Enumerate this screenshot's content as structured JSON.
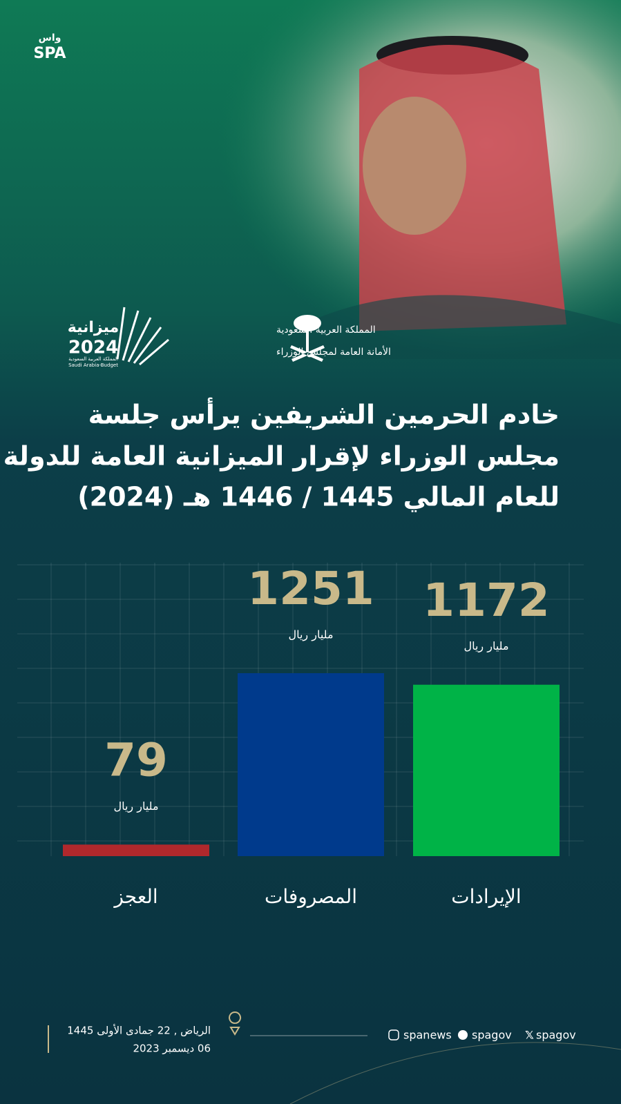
{
  "header": {
    "logo": "SPA",
    "budget_title": "ميزانية",
    "budget_year": "2024",
    "budget_country": "المملكة العربية السعودية",
    "budget_en": "Saudi Arabia-Budget",
    "kingdom": "المملكة العربية السعودية",
    "secretariat": "الأمانة العامة لمجلس الوزراء"
  },
  "title_lines": [
    "خادم الحرمين الشريفين يرأس جلسة",
    "مجلس الوزراء لإقرار الميزانية العامة للدولة",
    "للعام المالي 1445 / 1446 هـ (2024)"
  ],
  "chart_data": {
    "type": "bar",
    "categories": [
      "الإيرادات",
      "المصروفات",
      "العجز"
    ],
    "values": [
      1172,
      1251,
      79
    ],
    "colors": [
      "#00b347",
      "#003a8c",
      "#b0282c"
    ],
    "unit_label": "مليار ريال"
  },
  "footer": {
    "location_date_hijri": "الرياض , 22 جمادى الأولى 1445",
    "date_gregorian": "06 ديسمبر 2023",
    "social": [
      "spanews",
      "spagov",
      "spagov"
    ]
  }
}
